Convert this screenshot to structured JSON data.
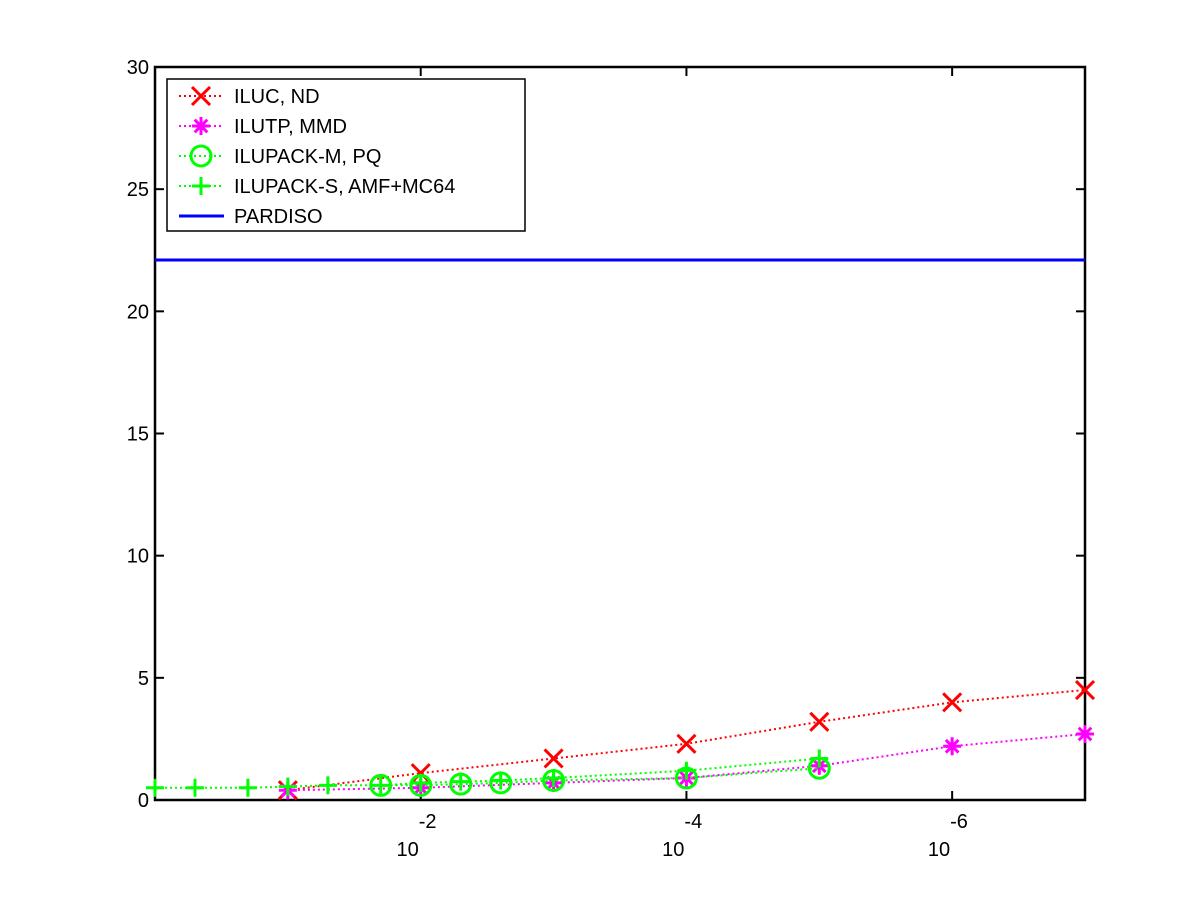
{
  "chart_data": {
    "type": "line",
    "title": "",
    "xlabel": "",
    "ylabel": "",
    "xscale": "log-reversed",
    "xlim": [
      1,
      1e-07
    ],
    "ylim": [
      0,
      30
    ],
    "grid": false,
    "legend_position": "top-left",
    "yticks": [
      0,
      5,
      10,
      15,
      20,
      25,
      30
    ],
    "xticks": [
      {
        "value": 0.01,
        "base": "10",
        "exponent": "-2"
      },
      {
        "value": 0.0001,
        "base": "10",
        "exponent": "-4"
      },
      {
        "value": 1e-06,
        "base": "10",
        "exponent": "-6"
      }
    ],
    "series": [
      {
        "name": "ILUC,  ND",
        "color": "#ff0000",
        "marker": "x",
        "line_style": "dotted",
        "points": [
          [
            0.1,
            0.4
          ],
          [
            0.01,
            1.1
          ],
          [
            0.001,
            1.7
          ],
          [
            0.0001,
            2.3
          ],
          [
            1e-05,
            3.2
          ],
          [
            1e-06,
            4.0
          ],
          [
            1e-07,
            4.5
          ]
        ]
      },
      {
        "name": "ILUTP, MMD",
        "color": "#ff00ff",
        "marker": "asterisk",
        "line_style": "dotted",
        "points": [
          [
            0.1,
            0.4
          ],
          [
            0.01,
            0.5
          ],
          [
            0.001,
            0.7
          ],
          [
            0.0001,
            0.9
          ],
          [
            1e-05,
            1.4
          ],
          [
            1e-06,
            2.2
          ],
          [
            1e-07,
            2.7
          ]
        ]
      },
      {
        "name": "ILUPACK-M, PQ",
        "color": "#00ff00",
        "marker": "circle",
        "line_style": "dotted",
        "points": [
          [
            0.02,
            0.6
          ],
          [
            0.01,
            0.6
          ],
          [
            0.005,
            0.65
          ],
          [
            0.0025,
            0.7
          ],
          [
            0.001,
            0.8
          ],
          [
            0.0001,
            0.9
          ],
          [
            1e-05,
            1.3
          ]
        ]
      },
      {
        "name": "ILUPACK-S, AMF+MC64",
        "color": "#00ff00",
        "marker": "plus",
        "line_style": "dotted",
        "points": [
          [
            1,
            0.5
          ],
          [
            0.5,
            0.5
          ],
          [
            0.2,
            0.5
          ],
          [
            0.1,
            0.55
          ],
          [
            0.05,
            0.6
          ],
          [
            0.02,
            0.6
          ],
          [
            0.01,
            0.7
          ],
          [
            0.005,
            0.75
          ],
          [
            0.0025,
            0.8
          ],
          [
            0.001,
            0.9
          ],
          [
            0.0001,
            1.2
          ],
          [
            1e-05,
            1.7
          ]
        ]
      },
      {
        "name": "PARDISO",
        "color": "#0000ff",
        "marker": "none",
        "line_style": "solid",
        "points": [
          [
            1,
            22.1
          ],
          [
            1e-07,
            22.1
          ]
        ]
      }
    ]
  }
}
